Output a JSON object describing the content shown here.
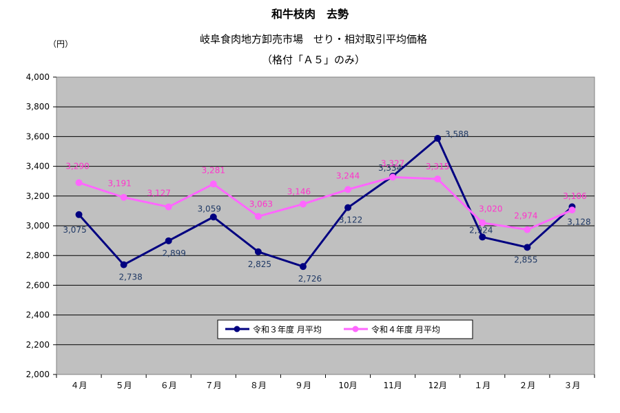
{
  "chart_data": {
    "type": "line",
    "title": "和牛枝肉　去勢",
    "subtitle": "岐阜食肉地方卸売市場　せり・相対取引平均価格",
    "subtitle2": "（格付「Ａ５」のみ）",
    "ylabel": "（円）",
    "ylim": [
      2000,
      4000
    ],
    "yticks": [
      "2,000",
      "2,200",
      "2,400",
      "2,600",
      "2,800",
      "3,000",
      "3,200",
      "3,400",
      "3,600",
      "3,800",
      "4,000"
    ],
    "categories": [
      "４月",
      "５月",
      "６月",
      "７月",
      "８月",
      "９月",
      "10月",
      "11月",
      "12月",
      "１月",
      "２月",
      "３月"
    ],
    "grid": true,
    "legend_position": "bottom-center inside",
    "series": [
      {
        "name": "令和３年度 月平均",
        "color": "#000080",
        "label_color": "#1f3864",
        "values": [
          3075,
          2738,
          2899,
          3059,
          2825,
          2726,
          3122,
          3334,
          3588,
          2924,
          2855,
          3128
        ],
        "labels": [
          "3,075",
          "2,738",
          "2,899",
          "3,059",
          "2,825",
          "2,726",
          "3,122",
          "3,334",
          "3,588",
          "2,924",
          "2,855",
          "3,128"
        ]
      },
      {
        "name": "令和４年度 月平均",
        "color": "#ff66ff",
        "label_color": "#ff33cc",
        "values": [
          3290,
          3191,
          3127,
          3281,
          3063,
          3146,
          3244,
          3327,
          3315,
          3020,
          2974,
          3106
        ],
        "labels": [
          "3,290",
          "3,191",
          "3,127",
          "3,281",
          "3,063",
          "3,146",
          "3,244",
          "3,327",
          "3,315",
          "3,020",
          "2,974",
          "3,106"
        ]
      }
    ]
  }
}
